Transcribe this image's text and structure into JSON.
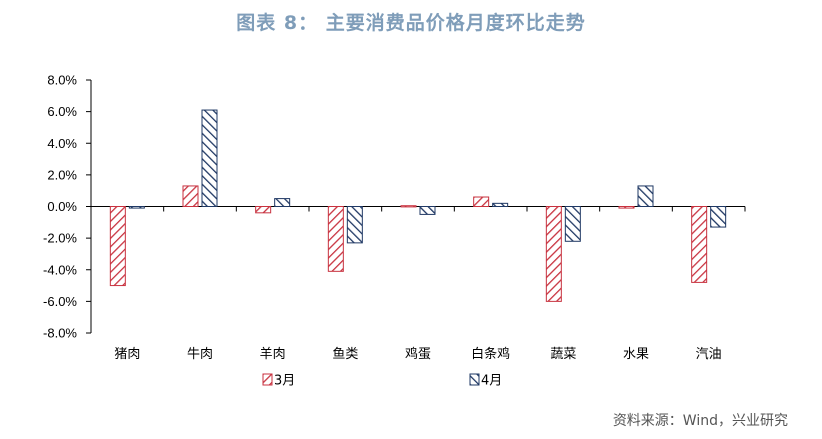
{
  "title": "图表 8： 主要消费品价格月度环比走势",
  "source": "资料来源：Wind，兴业研究",
  "chart_data": {
    "type": "bar",
    "categories": [
      "猪肉",
      "牛肉",
      "羊肉",
      "鱼类",
      "鸡蛋",
      "白条鸡",
      "蔬菜",
      "水果",
      "汽油"
    ],
    "series": [
      {
        "name": "3月",
        "values": [
          -5.0,
          1.3,
          -0.4,
          -4.1,
          0.05,
          0.6,
          -6.0,
          -0.1,
          -4.8
        ],
        "color": "#c8323f",
        "pattern": "hatch-left"
      },
      {
        "name": "4月",
        "values": [
          -0.1,
          6.1,
          0.5,
          -2.3,
          -0.5,
          0.2,
          -2.2,
          1.3,
          -1.3
        ],
        "color": "#1f3864",
        "pattern": "hatch-right"
      }
    ],
    "ylim": [
      -8,
      8
    ],
    "yticks": [
      "8.0%",
      "6.0%",
      "4.0%",
      "2.0%",
      "0.0%",
      "-2.0%",
      "-4.0%",
      "-6.0%",
      "-8.0%"
    ],
    "ytick_values": [
      8,
      6,
      4,
      2,
      0,
      -2,
      -4,
      -6,
      -8
    ],
    "grid": false,
    "legend": "bottom"
  }
}
